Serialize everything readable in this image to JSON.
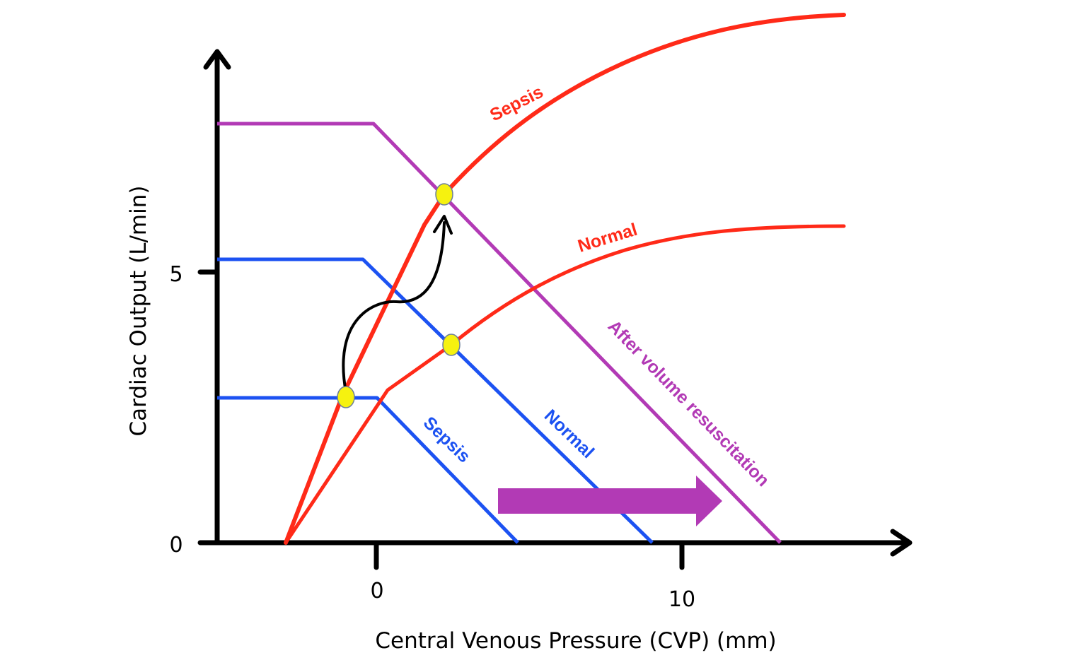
{
  "colors": {
    "cardiac_curve": "#ff2a18",
    "venous_return": "#1c52f2",
    "volume_resuscitation": "#b23ab5",
    "equilibrium_point": "#f6f20f",
    "axes": "#000000"
  },
  "axes": {
    "x_label": "Central Venous Pressure (CVP) (mm)",
    "y_label": "Cardiac Output (L/min)",
    "x_ticks": [
      "0",
      "10"
    ],
    "y_ticks": [
      "5",
      "0"
    ]
  },
  "labels": {
    "cardiac_sepsis": "Sepsis",
    "cardiac_normal": "Normal",
    "venous_sepsis": "Sepsis",
    "venous_normal": "Normal",
    "after_volume": "After volume resuscitation"
  },
  "icons": {
    "shift_arrow": "right-arrow-icon",
    "transition_arrow": "curved-arrow-icon"
  }
}
